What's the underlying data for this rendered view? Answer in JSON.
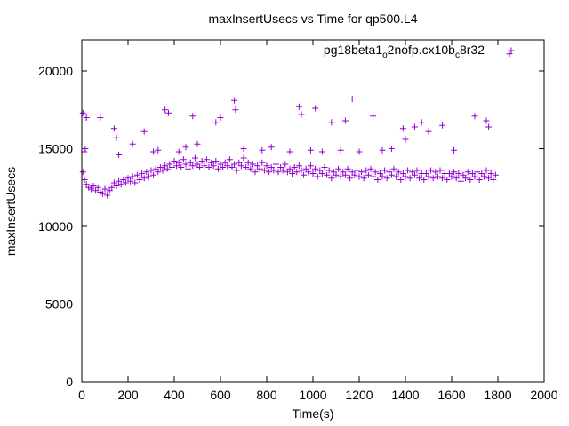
{
  "chart_data": {
    "type": "scatter",
    "title": "maxInsertUsecs vs Time for qp500.L4",
    "xlabel": "Time(s)",
    "ylabel": "maxInsertUsecs",
    "xlim": [
      0,
      2000
    ],
    "ylim": [
      0,
      22000
    ],
    "xticks": [
      "0",
      "200",
      "400",
      "600",
      "800",
      "1000",
      "1200",
      "1400",
      "1600",
      "1800",
      "2000"
    ],
    "yticks": [
      "0",
      "5000",
      "10000",
      "15000",
      "20000"
    ],
    "grid": false,
    "legend_position": "top-right",
    "series": [
      {
        "name": "pg18beta1_o2nofp.cx10b_c8r32",
        "name_parts": [
          "pg18beta1",
          "o",
          "2nofp.cx10b",
          "c",
          "8r32"
        ],
        "color": "#9400d3",
        "marker": "plus",
        "points": [
          [
            5,
            17300
          ],
          [
            10,
            14800
          ],
          [
            15,
            15000
          ],
          [
            20,
            17000
          ],
          [
            80,
            17000
          ],
          [
            140,
            16300
          ],
          [
            150,
            15700
          ],
          [
            160,
            14600
          ],
          [
            220,
            15300
          ],
          [
            270,
            16100
          ],
          [
            310,
            14800
          ],
          [
            330,
            14900
          ],
          [
            360,
            17500
          ],
          [
            375,
            17300
          ],
          [
            420,
            14800
          ],
          [
            450,
            15100
          ],
          [
            480,
            17100
          ],
          [
            500,
            15300
          ],
          [
            580,
            16700
          ],
          [
            600,
            17000
          ],
          [
            660,
            18100
          ],
          [
            665,
            17500
          ],
          [
            700,
            15000
          ],
          [
            780,
            14900
          ],
          [
            820,
            15100
          ],
          [
            900,
            14800
          ],
          [
            940,
            17700
          ],
          [
            950,
            17200
          ],
          [
            990,
            14900
          ],
          [
            1010,
            17600
          ],
          [
            1040,
            14800
          ],
          [
            1080,
            16700
          ],
          [
            1120,
            14900
          ],
          [
            1140,
            16800
          ],
          [
            1170,
            18200
          ],
          [
            1200,
            14800
          ],
          [
            1260,
            17100
          ],
          [
            1300,
            14900
          ],
          [
            1340,
            15000
          ],
          [
            1390,
            16300
          ],
          [
            1400,
            15600
          ],
          [
            1440,
            16400
          ],
          [
            1470,
            16700
          ],
          [
            1500,
            16100
          ],
          [
            1560,
            16500
          ],
          [
            1610,
            14900
          ],
          [
            1700,
            17100
          ],
          [
            1750,
            16800
          ],
          [
            1760,
            16400
          ],
          [
            1850,
            21100
          ],
          [
            5,
            13500
          ],
          [
            12,
            13000
          ],
          [
            20,
            12700
          ],
          [
            30,
            12500
          ],
          [
            40,
            12400
          ],
          [
            50,
            12600
          ],
          [
            60,
            12300
          ],
          [
            70,
            12500
          ],
          [
            80,
            12200
          ],
          [
            90,
            12100
          ],
          [
            100,
            12400
          ],
          [
            110,
            12000
          ],
          [
            120,
            12300
          ],
          [
            130,
            12500
          ],
          [
            140,
            12800
          ],
          [
            150,
            12600
          ],
          [
            160,
            12900
          ],
          [
            170,
            12700
          ],
          [
            180,
            13000
          ],
          [
            190,
            12800
          ],
          [
            200,
            13100
          ],
          [
            210,
            12900
          ],
          [
            220,
            13200
          ],
          [
            230,
            12800
          ],
          [
            240,
            13300
          ],
          [
            250,
            13000
          ],
          [
            260,
            13400
          ],
          [
            270,
            13100
          ],
          [
            280,
            13500
          ],
          [
            290,
            13200
          ],
          [
            300,
            13600
          ],
          [
            310,
            13300
          ],
          [
            320,
            13700
          ],
          [
            330,
            13500
          ],
          [
            340,
            13800
          ],
          [
            350,
            13600
          ],
          [
            360,
            13900
          ],
          [
            370,
            13700
          ],
          [
            380,
            14000
          ],
          [
            390,
            13800
          ],
          [
            400,
            14200
          ],
          [
            410,
            13900
          ],
          [
            420,
            14100
          ],
          [
            430,
            13800
          ],
          [
            440,
            14300
          ],
          [
            450,
            14000
          ],
          [
            460,
            13700
          ],
          [
            470,
            14100
          ],
          [
            480,
            13900
          ],
          [
            490,
            14400
          ],
          [
            500,
            14000
          ],
          [
            510,
            13800
          ],
          [
            520,
            14200
          ],
          [
            530,
            13900
          ],
          [
            540,
            14300
          ],
          [
            550,
            13800
          ],
          [
            560,
            14100
          ],
          [
            570,
            13900
          ],
          [
            580,
            14200
          ],
          [
            590,
            13700
          ],
          [
            600,
            14000
          ],
          [
            610,
            13800
          ],
          [
            620,
            14100
          ],
          [
            630,
            13900
          ],
          [
            640,
            14300
          ],
          [
            650,
            13800
          ],
          [
            660,
            14000
          ],
          [
            670,
            13600
          ],
          [
            680,
            14100
          ],
          [
            690,
            13900
          ],
          [
            700,
            14400
          ],
          [
            710,
            13800
          ],
          [
            720,
            14100
          ],
          [
            730,
            13700
          ],
          [
            740,
            14000
          ],
          [
            750,
            13500
          ],
          [
            760,
            13900
          ],
          [
            770,
            13700
          ],
          [
            780,
            14100
          ],
          [
            790,
            13600
          ],
          [
            800,
            13900
          ],
          [
            810,
            13500
          ],
          [
            820,
            13800
          ],
          [
            830,
            13600
          ],
          [
            840,
            14000
          ],
          [
            850,
            13500
          ],
          [
            860,
            13800
          ],
          [
            870,
            13600
          ],
          [
            880,
            14000
          ],
          [
            890,
            13500
          ],
          [
            900,
            13700
          ],
          [
            910,
            13400
          ],
          [
            920,
            13800
          ],
          [
            930,
            13500
          ],
          [
            940,
            13900
          ],
          [
            950,
            13600
          ],
          [
            960,
            13300
          ],
          [
            970,
            13700
          ],
          [
            980,
            13500
          ],
          [
            990,
            13900
          ],
          [
            1000,
            13400
          ],
          [
            1010,
            13700
          ],
          [
            1020,
            13200
          ],
          [
            1030,
            13600
          ],
          [
            1040,
            13400
          ],
          [
            1050,
            13800
          ],
          [
            1060,
            13300
          ],
          [
            1070,
            13600
          ],
          [
            1080,
            13100
          ],
          [
            1090,
            13500
          ],
          [
            1100,
            13300
          ],
          [
            1110,
            13700
          ],
          [
            1120,
            13200
          ],
          [
            1130,
            13500
          ],
          [
            1140,
            13300
          ],
          [
            1150,
            13700
          ],
          [
            1160,
            13100
          ],
          [
            1170,
            13500
          ],
          [
            1180,
            13300
          ],
          [
            1190,
            13600
          ],
          [
            1200,
            13200
          ],
          [
            1210,
            13500
          ],
          [
            1220,
            13100
          ],
          [
            1230,
            13600
          ],
          [
            1240,
            13300
          ],
          [
            1250,
            13700
          ],
          [
            1260,
            13200
          ],
          [
            1270,
            13500
          ],
          [
            1280,
            13000
          ],
          [
            1290,
            13400
          ],
          [
            1300,
            13200
          ],
          [
            1310,
            13600
          ],
          [
            1320,
            13100
          ],
          [
            1330,
            13500
          ],
          [
            1340,
            13300
          ],
          [
            1350,
            13700
          ],
          [
            1360,
            13200
          ],
          [
            1370,
            13500
          ],
          [
            1380,
            13000
          ],
          [
            1390,
            13400
          ],
          [
            1400,
            13200
          ],
          [
            1410,
            13600
          ],
          [
            1420,
            13100
          ],
          [
            1430,
            13500
          ],
          [
            1440,
            13300
          ],
          [
            1450,
            13600
          ],
          [
            1460,
            13100
          ],
          [
            1470,
            13400
          ],
          [
            1480,
            13000
          ],
          [
            1490,
            13400
          ],
          [
            1500,
            13200
          ],
          [
            1510,
            13600
          ],
          [
            1520,
            13100
          ],
          [
            1530,
            13500
          ],
          [
            1540,
            13200
          ],
          [
            1550,
            13600
          ],
          [
            1560,
            13100
          ],
          [
            1570,
            13400
          ],
          [
            1580,
            13000
          ],
          [
            1590,
            13400
          ],
          [
            1600,
            13200
          ],
          [
            1610,
            13500
          ],
          [
            1620,
            13100
          ],
          [
            1630,
            13400
          ],
          [
            1640,
            12900
          ],
          [
            1650,
            13300
          ],
          [
            1660,
            13100
          ],
          [
            1670,
            13500
          ],
          [
            1680,
            13000
          ],
          [
            1690,
            13400
          ],
          [
            1700,
            13200
          ],
          [
            1710,
            13500
          ],
          [
            1720,
            13000
          ],
          [
            1730,
            13400
          ],
          [
            1740,
            13200
          ],
          [
            1750,
            13600
          ],
          [
            1760,
            13100
          ],
          [
            1770,
            13400
          ],
          [
            1780,
            13000
          ],
          [
            1790,
            13300
          ]
        ]
      }
    ]
  }
}
